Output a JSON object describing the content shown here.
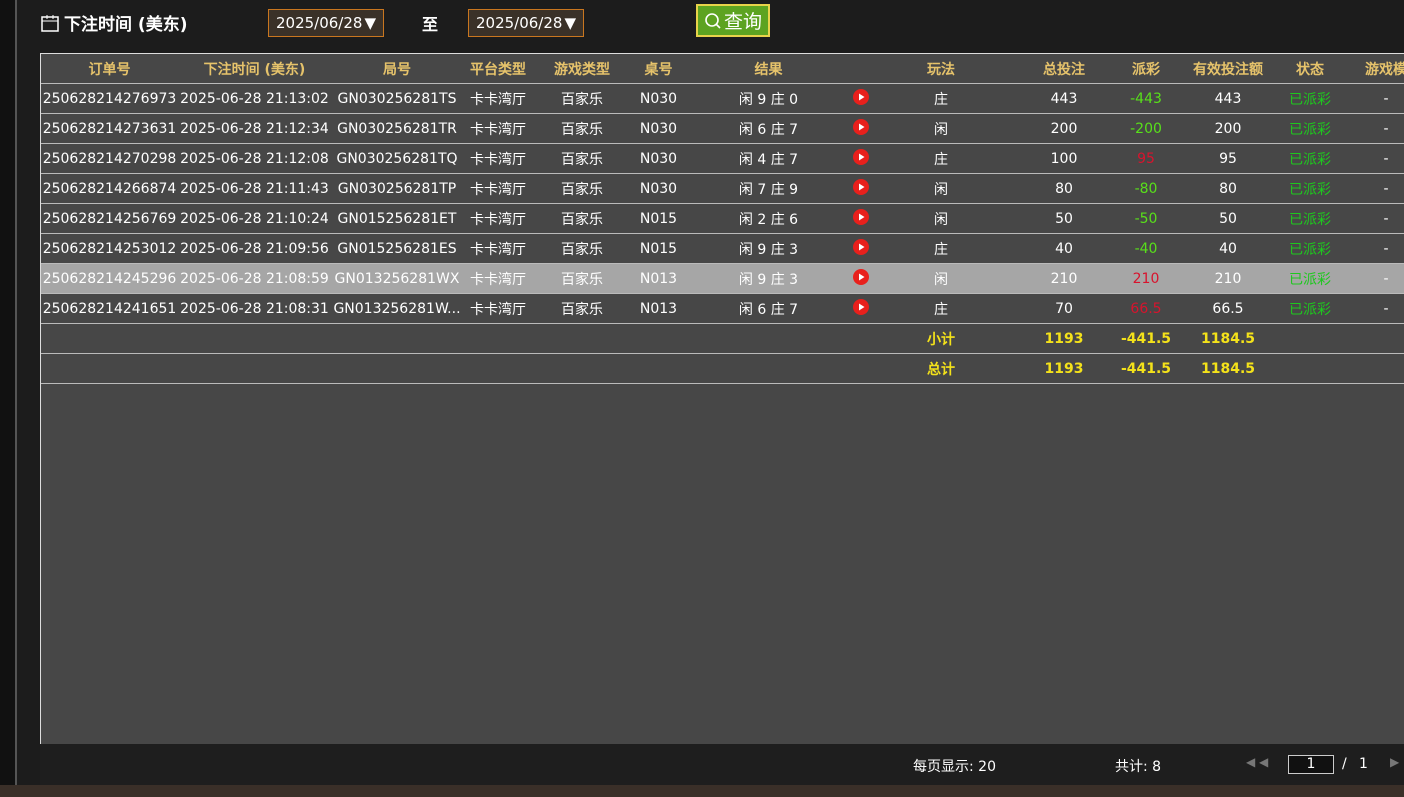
{
  "filter": {
    "label": "下注时间 (美东)",
    "start_date": "2025/06/28",
    "to": "至",
    "end_date": "2025/06/28",
    "button": "查询"
  },
  "table": {
    "headers": [
      "订单号",
      "下注时间 (美东)",
      "局号",
      "平台类型",
      "游戏类型",
      "桌号",
      "结果",
      "玩法",
      "总投注",
      "派彩",
      "有效投注额",
      "状态",
      "游戏模"
    ],
    "rows": [
      [
        "250628214276973",
        "2025-06-28 21:13:02",
        "GN030256281TS",
        "卡卡湾厅",
        "百家乐",
        "N030",
        "闲 9 庄 0",
        "庄",
        "443",
        "-443",
        "443",
        "已派彩",
        "-"
      ],
      [
        "250628214273631",
        "2025-06-28 21:12:34",
        "GN030256281TR",
        "卡卡湾厅",
        "百家乐",
        "N030",
        "闲 6 庄 7",
        "闲",
        "200",
        "-200",
        "200",
        "已派彩",
        "-"
      ],
      [
        "250628214270298",
        "2025-06-28 21:12:08",
        "GN030256281TQ",
        "卡卡湾厅",
        "百家乐",
        "N030",
        "闲 4 庄 7",
        "庄",
        "100",
        "95",
        "95",
        "已派彩",
        "-"
      ],
      [
        "250628214266874",
        "2025-06-28 21:11:43",
        "GN030256281TP",
        "卡卡湾厅",
        "百家乐",
        "N030",
        "闲 7 庄 9",
        "闲",
        "80",
        "-80",
        "80",
        "已派彩",
        "-"
      ],
      [
        "250628214256769",
        "2025-06-28 21:10:24",
        "GN015256281ET",
        "卡卡湾厅",
        "百家乐",
        "N015",
        "闲 2 庄 6",
        "闲",
        "50",
        "-50",
        "50",
        "已派彩",
        "-"
      ],
      [
        "250628214253012",
        "2025-06-28 21:09:56",
        "GN015256281ES",
        "卡卡湾厅",
        "百家乐",
        "N015",
        "闲 9 庄 3",
        "庄",
        "40",
        "-40",
        "40",
        "已派彩",
        "-"
      ],
      [
        "250628214245296",
        "2025-06-28 21:08:59",
        "GN013256281WX",
        "卡卡湾厅",
        "百家乐",
        "N013",
        "闲 9 庄 3",
        "闲",
        "210",
        "210",
        "210",
        "已派彩",
        "-"
      ],
      [
        "250628214241651",
        "2025-06-28 21:08:31",
        "GN013256281W...",
        "卡卡湾厅",
        "百家乐",
        "N013",
        "闲 6 庄 7",
        "庄",
        "70",
        "66.5",
        "66.5",
        "已派彩",
        "-"
      ]
    ],
    "subtotal": {
      "label": "小计",
      "total": "1193",
      "payout": "-441.5",
      "effective": "1184.5"
    },
    "grand_total": {
      "label": "总计",
      "total": "1193",
      "payout": "-441.5",
      "effective": "1184.5"
    }
  },
  "footer": {
    "per_page": "每页显示: 20",
    "count": "共计: 8",
    "page": "1",
    "separator": "/",
    "pages": "1"
  }
}
